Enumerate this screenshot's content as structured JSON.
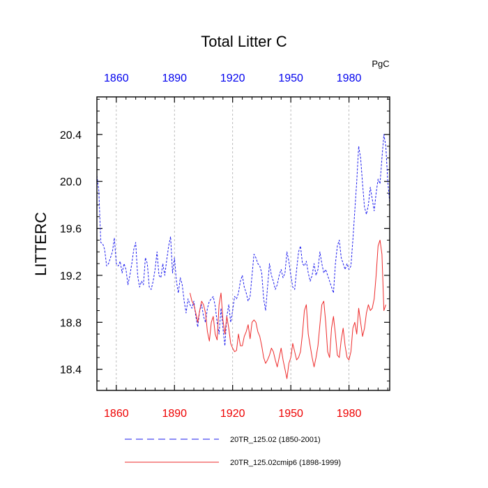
{
  "chart_data": {
    "type": "line",
    "title": "Total Litter C",
    "units": "PgC",
    "ylabel": "LITTERC",
    "xlabel": "",
    "xlim": [
      1850,
      2001
    ],
    "ylim": [
      18.22,
      20.72
    ],
    "xticks": [
      1860,
      1890,
      1920,
      1950,
      1980
    ],
    "xtick_labels": [
      "1860",
      "1890",
      "1920",
      "1950",
      "1980"
    ],
    "yticks": [
      18.4,
      18.8,
      19.2,
      19.6,
      20.0,
      20.4
    ],
    "ytick_labels": [
      "18.4",
      "18.8",
      "19.2",
      "19.6",
      "20.0",
      "20.4"
    ],
    "grid": "vertical dotted lines at x ticks",
    "colors": {
      "top_axis": "#0000ee",
      "bottom_axis": "#ee0000",
      "series1": "#1a1aee",
      "series2": "#ee2a2a"
    },
    "series": [
      {
        "name": "20TR_125.02 (1850-2001)",
        "color": "#1a1aee",
        "dash": true,
        "x_start": 1850,
        "values": [
          20.05,
          19.92,
          19.48,
          19.47,
          19.42,
          19.28,
          19.3,
          19.35,
          19.4,
          19.52,
          19.3,
          19.28,
          19.32,
          19.22,
          19.3,
          19.25,
          19.12,
          19.2,
          19.3,
          19.42,
          19.48,
          19.2,
          19.1,
          19.15,
          19.12,
          19.35,
          19.3,
          19.1,
          19.08,
          19.15,
          19.25,
          19.4,
          19.2,
          19.18,
          19.3,
          19.2,
          19.33,
          19.45,
          19.53,
          19.22,
          19.35,
          19.15,
          19.05,
          19.18,
          19.12,
          18.98,
          18.88,
          19.0,
          18.95,
          18.92,
          18.98,
          18.85,
          18.76,
          18.9,
          18.95,
          18.85,
          18.8,
          18.92,
          18.98,
          19.0,
          19.02,
          18.94,
          18.8,
          18.7,
          18.92,
          18.75,
          18.6,
          18.85,
          18.95,
          18.8,
          18.9,
          19.02,
          19.0,
          19.05,
          19.15,
          19.2,
          19.1,
          19.05,
          18.98,
          19.02,
          19.2,
          19.38,
          19.35,
          19.3,
          19.28,
          19.22,
          19.0,
          18.9,
          19.1,
          19.3,
          19.2,
          19.15,
          19.08,
          19.12,
          19.2,
          19.25,
          19.18,
          19.22,
          19.4,
          19.32,
          19.2,
          19.1,
          19.08,
          19.25,
          19.4,
          19.45,
          19.3,
          19.28,
          19.32,
          19.22,
          19.15,
          19.2,
          19.3,
          19.2,
          19.25,
          19.4,
          19.3,
          19.22,
          19.25,
          19.2,
          19.15,
          19.1,
          19.05,
          19.3,
          19.45,
          19.5,
          19.35,
          19.3,
          19.25,
          19.3,
          19.25,
          19.28,
          19.5,
          19.75,
          20.0,
          20.3,
          20.2,
          19.98,
          19.78,
          19.72,
          19.8,
          19.95,
          19.85,
          19.75,
          19.9,
          20.02,
          19.98,
          20.2,
          20.4,
          20.3,
          20.0,
          19.82
        ]
      },
      {
        "name": "20TR_125.02cmip6 (1898-1999)",
        "color": "#ee2a2a",
        "dash": false,
        "x_start": 1898,
        "values": [
          19.05,
          18.98,
          18.95,
          18.88,
          18.8,
          18.9,
          18.98,
          18.95,
          18.88,
          18.72,
          18.64,
          18.8,
          18.85,
          18.7,
          18.65,
          18.95,
          19.05,
          18.82,
          18.7,
          18.85,
          18.75,
          18.62,
          18.58,
          18.55,
          18.56,
          18.7,
          18.6,
          18.6,
          18.68,
          18.72,
          18.78,
          18.66,
          18.8,
          18.82,
          18.8,
          18.72,
          18.68,
          18.6,
          18.5,
          18.45,
          18.48,
          18.52,
          18.58,
          18.55,
          18.48,
          18.42,
          18.5,
          18.58,
          18.48,
          18.4,
          18.32,
          18.45,
          18.5,
          18.62,
          18.55,
          18.48,
          18.5,
          18.55,
          18.7,
          18.9,
          18.95,
          18.7,
          18.6,
          18.5,
          18.42,
          18.5,
          18.6,
          18.78,
          18.95,
          18.98,
          18.8,
          18.55,
          18.5,
          18.75,
          18.85,
          18.7,
          18.52,
          18.5,
          18.65,
          18.75,
          18.6,
          18.5,
          18.48,
          18.55,
          18.75,
          18.8,
          18.7,
          18.92,
          18.8,
          18.68,
          18.75,
          18.88,
          18.95,
          18.9,
          18.92,
          19.0,
          19.2,
          19.45,
          19.5,
          19.38,
          18.9,
          18.95
        ]
      }
    ]
  }
}
